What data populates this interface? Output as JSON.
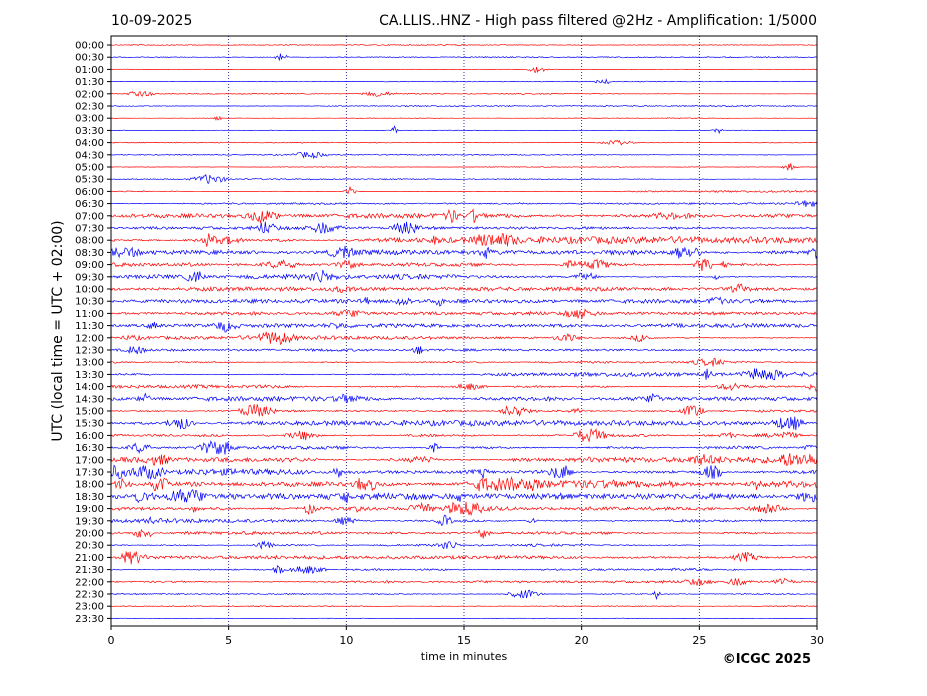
{
  "header": {
    "date": "10-09-2025",
    "title": "CA.LLIS..HNZ - High pass filtered @2Hz - Amplification: 1/5000"
  },
  "footer": {
    "copyright": "©ICGC 2025"
  },
  "chart_data": {
    "type": "line",
    "title": "CA.LLIS..HNZ - High pass filtered @2Hz - Amplification: 1/5000",
    "subtitle": "10-09-2025",
    "xlabel": "time in minutes",
    "ylabel": "UTC (local time = UTC + 02:00)",
    "xlim": [
      0,
      30
    ],
    "x_ticks": [
      "0",
      "5",
      "10",
      "15",
      "20",
      "25",
      "30"
    ],
    "grid": "vertical dotted lines at every 5 minutes",
    "trace_colors": [
      "#ff0000",
      "#0000ff"
    ],
    "rows": [
      {
        "label": "00:00",
        "color": "#ff0000",
        "activity": 0.05
      },
      {
        "label": "00:30",
        "color": "#0000ff",
        "activity": 0.05
      },
      {
        "label": "01:00",
        "color": "#ff0000",
        "activity": 0.05
      },
      {
        "label": "01:30",
        "color": "#0000ff",
        "activity": 0.05
      },
      {
        "label": "02:00",
        "color": "#ff0000",
        "activity": 0.05
      },
      {
        "label": "02:30",
        "color": "#0000ff",
        "activity": 0.06
      },
      {
        "label": "03:00",
        "color": "#ff0000",
        "activity": 0.08
      },
      {
        "label": "03:30",
        "color": "#0000ff",
        "activity": 0.08
      },
      {
        "label": "04:00",
        "color": "#ff0000",
        "activity": 0.08
      },
      {
        "label": "04:30",
        "color": "#0000ff",
        "activity": 0.06
      },
      {
        "label": "05:00",
        "color": "#ff0000",
        "activity": 0.08
      },
      {
        "label": "05:30",
        "color": "#0000ff",
        "activity": 0.08
      },
      {
        "label": "06:00",
        "color": "#ff0000",
        "activity": 0.15
      },
      {
        "label": "06:30",
        "color": "#0000ff",
        "activity": 0.12
      },
      {
        "label": "07:00",
        "color": "#ff0000",
        "activity": 0.5
      },
      {
        "label": "07:30",
        "color": "#0000ff",
        "activity": 0.6
      },
      {
        "label": "08:00",
        "color": "#ff0000",
        "activity": 0.8
      },
      {
        "label": "08:30",
        "color": "#0000ff",
        "activity": 0.55
      },
      {
        "label": "09:00",
        "color": "#ff0000",
        "activity": 0.75
      },
      {
        "label": "09:30",
        "color": "#0000ff",
        "activity": 0.55
      },
      {
        "label": "10:00",
        "color": "#ff0000",
        "activity": 0.4
      },
      {
        "label": "10:30",
        "color": "#0000ff",
        "activity": 0.4
      },
      {
        "label": "11:00",
        "color": "#ff0000",
        "activity": 0.35
      },
      {
        "label": "11:30",
        "color": "#0000ff",
        "activity": 0.4
      },
      {
        "label": "12:00",
        "color": "#ff0000",
        "activity": 0.45
      },
      {
        "label": "12:30",
        "color": "#0000ff",
        "activity": 0.25
      },
      {
        "label": "13:00",
        "color": "#ff0000",
        "activity": 0.3
      },
      {
        "label": "13:30",
        "color": "#0000ff",
        "activity": 0.45
      },
      {
        "label": "14:00",
        "color": "#ff0000",
        "activity": 0.45
      },
      {
        "label": "14:30",
        "color": "#0000ff",
        "activity": 0.5
      },
      {
        "label": "15:00",
        "color": "#ff0000",
        "activity": 0.6
      },
      {
        "label": "15:30",
        "color": "#0000ff",
        "activity": 0.6
      },
      {
        "label": "16:00",
        "color": "#ff0000",
        "activity": 0.7
      },
      {
        "label": "16:30",
        "color": "#0000ff",
        "activity": 0.7
      },
      {
        "label": "17:00",
        "color": "#ff0000",
        "activity": 0.85
      },
      {
        "label": "17:30",
        "color": "#0000ff",
        "activity": 0.95
      },
      {
        "label": "18:00",
        "color": "#ff0000",
        "activity": 1.0
      },
      {
        "label": "18:30",
        "color": "#0000ff",
        "activity": 1.0
      },
      {
        "label": "19:00",
        "color": "#ff0000",
        "activity": 0.9
      },
      {
        "label": "19:30",
        "color": "#0000ff",
        "activity": 0.7
      },
      {
        "label": "20:00",
        "color": "#ff0000",
        "activity": 0.55
      },
      {
        "label": "20:30",
        "color": "#0000ff",
        "activity": 0.3
      },
      {
        "label": "21:00",
        "color": "#ff0000",
        "activity": 0.35
      },
      {
        "label": "21:30",
        "color": "#0000ff",
        "activity": 0.45
      },
      {
        "label": "22:00",
        "color": "#ff0000",
        "activity": 0.35
      },
      {
        "label": "22:30",
        "color": "#0000ff",
        "activity": 0.15
      },
      {
        "label": "23:00",
        "color": "#ff0000",
        "activity": 0.05
      },
      {
        "label": "23:30",
        "color": "#0000ff",
        "activity": 0.05
      }
    ]
  }
}
